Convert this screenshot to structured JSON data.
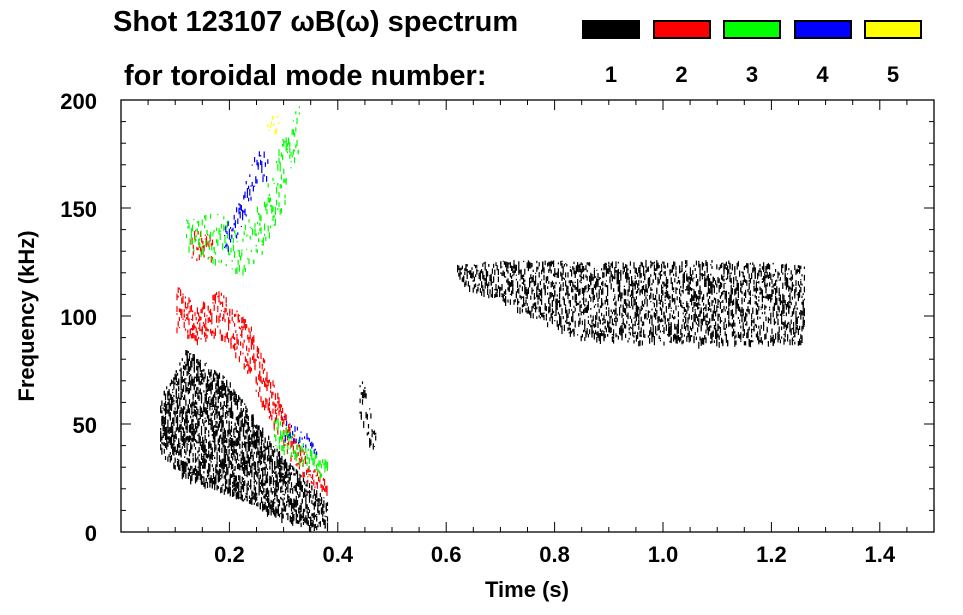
{
  "chart_data": {
    "type": "heatmap",
    "title": "Shot 123107 ωB(ω) spectrum",
    "subtitle": "for toroidal mode number:",
    "xlabel": "Time (s)",
    "ylabel": "Frequency (kHz)",
    "xlim": [
      0,
      1.5
    ],
    "ylim": [
      0,
      200
    ],
    "xticks": [
      "0.2",
      "0.4",
      "0.6",
      "0.8",
      "1.0",
      "1.2",
      "1.4"
    ],
    "xtick_values": [
      0.2,
      0.4,
      0.6,
      0.8,
      1.0,
      1.2,
      1.4
    ],
    "yticks": [
      "0",
      "50",
      "100",
      "150",
      "200"
    ],
    "ytick_values": [
      0,
      50,
      100,
      150,
      200
    ],
    "legend": {
      "placement": "top-right",
      "entries": [
        {
          "label": "1",
          "color": "#000000"
        },
        {
          "label": "2",
          "color": "#ff0000"
        },
        {
          "label": "3",
          "color": "#00ff00"
        },
        {
          "label": "4",
          "color": "#0000ff"
        },
        {
          "label": "5",
          "color": "#ffff00"
        }
      ]
    },
    "regions": [
      {
        "mode": 1,
        "t": [
          0.07,
          0.1,
          0.12,
          0.16,
          0.2,
          0.25,
          0.3,
          0.35,
          0.38
        ],
        "fmin": [
          38,
          30,
          25,
          22,
          18,
          12,
          6,
          3,
          2
        ],
        "fmax": [
          62,
          75,
          85,
          78,
          70,
          52,
          35,
          22,
          15
        ],
        "density": 0.55
      },
      {
        "mode": 1,
        "t": [
          0.62,
          0.7,
          0.8,
          0.85,
          0.95,
          1.1,
          1.26
        ],
        "fmin": [
          115,
          108,
          95,
          90,
          88,
          88,
          88
        ],
        "fmax": [
          124,
          126,
          126,
          125,
          126,
          126,
          124
        ],
        "density": 0.35
      },
      {
        "mode": 1,
        "t": [
          0.44,
          0.455,
          0.47
        ],
        "fmin": [
          55,
          40,
          32
        ],
        "fmax": [
          78,
          60,
          45
        ],
        "density": 0.2
      },
      {
        "mode": 2,
        "t": [
          0.1,
          0.14,
          0.18,
          0.2,
          0.24,
          0.28,
          0.32,
          0.36,
          0.38
        ],
        "fmin": [
          95,
          88,
          92,
          88,
          70,
          50,
          30,
          20,
          18
        ],
        "fmax": [
          115,
          105,
          112,
          108,
          95,
          70,
          45,
          30,
          25
        ],
        "density": 0.3
      },
      {
        "mode": 2,
        "t": [
          0.13,
          0.15,
          0.17
        ],
        "fmin": [
          125,
          128,
          125
        ],
        "fmax": [
          140,
          142,
          135
        ],
        "density": 0.2
      },
      {
        "mode": 3,
        "t": [
          0.12,
          0.18,
          0.22,
          0.26,
          0.3,
          0.33
        ],
        "fmin": [
          130,
          125,
          120,
          130,
          150,
          180
        ],
        "fmax": [
          145,
          148,
          140,
          155,
          185,
          200
        ],
        "density": 0.15
      },
      {
        "mode": 3,
        "t": [
          0.28,
          0.32,
          0.36,
          0.38
        ],
        "fmin": [
          40,
          35,
          28,
          25
        ],
        "fmax": [
          55,
          45,
          38,
          33
        ],
        "density": 0.3
      },
      {
        "mode": 4,
        "t": [
          0.19,
          0.22,
          0.25,
          0.27
        ],
        "fmin": [
          130,
          140,
          160,
          165
        ],
        "fmax": [
          145,
          155,
          178,
          178
        ],
        "density": 0.15
      },
      {
        "mode": 4,
        "t": [
          0.3,
          0.33,
          0.36
        ],
        "fmin": [
          45,
          40,
          35
        ],
        "fmax": [
          55,
          50,
          42
        ],
        "density": 0.1
      },
      {
        "mode": 5,
        "t": [
          0.27,
          0.29
        ],
        "fmin": [
          186,
          186
        ],
        "fmax": [
          193,
          193
        ],
        "density": 0.1
      }
    ]
  }
}
